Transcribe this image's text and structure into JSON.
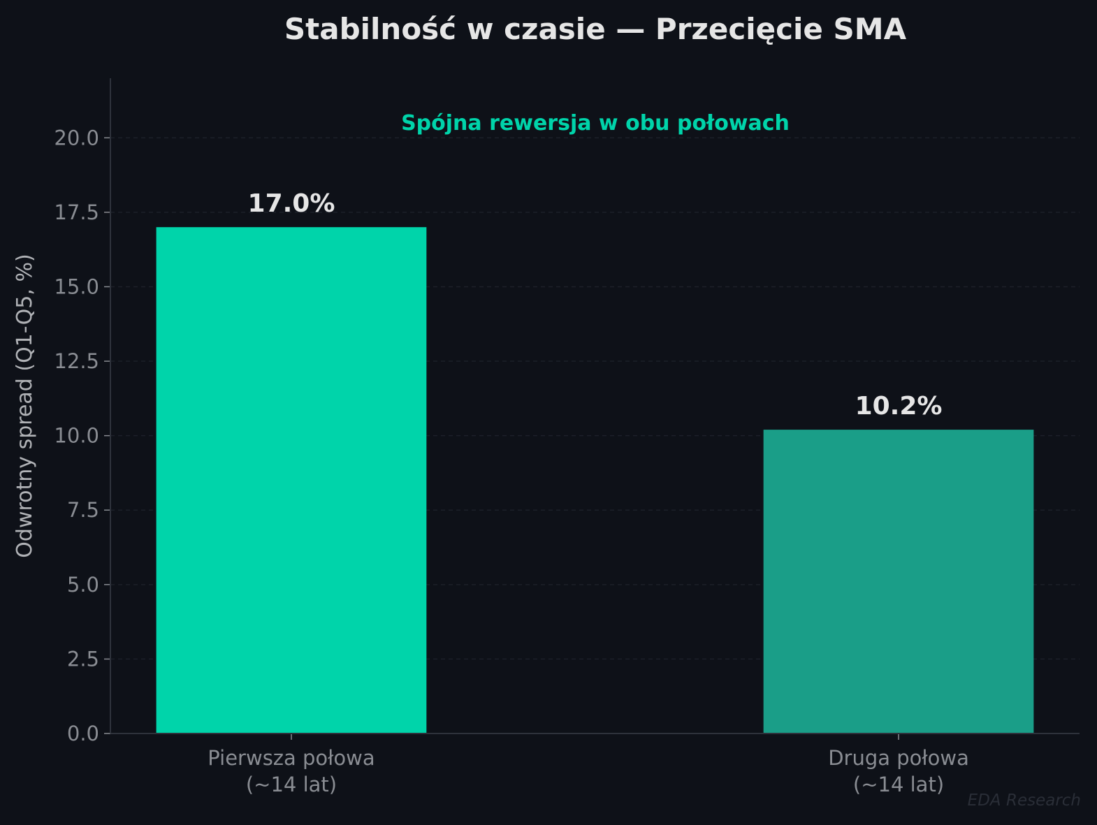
{
  "chart_data": {
    "type": "bar",
    "title": "Stabilność w czasie — Przecięcie SMA",
    "annotation": "Spójna rewersja w obu połowach",
    "categories": [
      [
        "Pierwsza połowa",
        "(~14 lat)"
      ],
      [
        "Druga połowa",
        "(~14 lat)"
      ]
    ],
    "values": [
      17.0,
      10.2
    ],
    "value_labels": [
      "17.0%",
      "10.2%"
    ],
    "bar_colors": [
      "#00d4aa",
      "#1a9e88"
    ],
    "xlabel": "",
    "ylabel": "Odwrotny spread (Q1-Q5, %)",
    "ylim": [
      0,
      22
    ],
    "yticks": [
      0,
      2.5,
      5,
      7.5,
      10,
      12.5,
      15,
      17.5,
      20
    ],
    "ytick_labels": [
      "0.0",
      "2.5",
      "5.0",
      "7.5",
      "10.0",
      "12.5",
      "15.0",
      "17.5",
      "20.0"
    ],
    "grid": "horizontal dashed",
    "background": "#0e1118",
    "watermark": "EDA Research"
  }
}
